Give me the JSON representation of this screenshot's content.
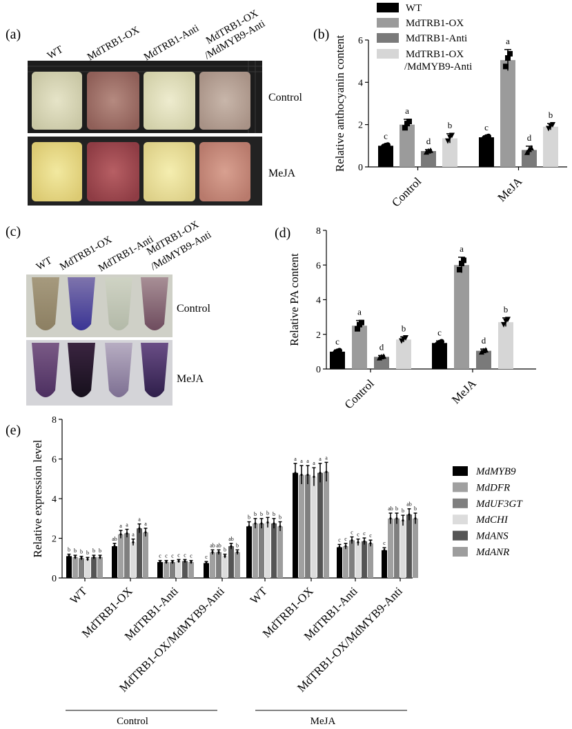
{
  "panels": {
    "a": {
      "tag": "(a)",
      "columns": [
        "WT",
        "MdTRB1-OX",
        "MdTRB1-Anti",
        "MdTRB1-OX",
        "/MdMYB9-Anti"
      ],
      "rows": [
        "Control",
        "MeJA"
      ]
    },
    "c": {
      "tag": "(c)",
      "columns": [
        "WT",
        "MdTRB1-OX",
        "MdTRB1-Anti",
        "MdTRB1-OX",
        "/MdMYB9-Anti"
      ],
      "rows": [
        "Control",
        "MeJA"
      ]
    },
    "b": {
      "tag": "(b)"
    },
    "d": {
      "tag": "(d)"
    },
    "e": {
      "tag": "(e)",
      "group_labels": [
        "Control",
        "MeJA"
      ]
    }
  },
  "colors": {
    "WT": "#000000",
    "MdTRB1-OX": "#9b9b9b",
    "MdTRB1-Anti": "#7a7a7a",
    "MdTRB1-OX/MdMYB9-Anti": "#d6d6d6",
    "MdMYB9": "#000000",
    "MdDFR": "#a0a0a0",
    "MdUF3GT": "#7f7f7f",
    "MdCHI": "#dcdcdc",
    "MdANS": "#555555",
    "MdANR": "#9d9d9d"
  },
  "chart_data": [
    {
      "panel": "b",
      "type": "bar",
      "categories": [
        "Control",
        "MeJA"
      ],
      "ylabel": "Relative anthocyanin content",
      "ylim": [
        0,
        6
      ],
      "yticks": [
        0,
        2,
        4,
        6
      ],
      "legend": "top-left",
      "series": [
        {
          "name": "WT",
          "values": [
            1.0,
            1.4
          ],
          "errors": [
            0.06,
            0.07
          ],
          "letters": [
            "c",
            "c"
          ]
        },
        {
          "name": "MdTRB1-OX",
          "values": [
            2.0,
            5.05
          ],
          "errors": [
            0.25,
            0.5
          ],
          "letters": [
            "a",
            "a"
          ]
        },
        {
          "name": "MdTRB1-Anti",
          "values": [
            0.75,
            0.8
          ],
          "errors": [
            0.07,
            0.18
          ],
          "letters": [
            "d",
            "d"
          ]
        },
        {
          "name": "MdTRB1-OX/MdMYB9-Anti",
          "values": [
            1.35,
            1.9
          ],
          "errors": [
            0.22,
            0.15
          ],
          "letters": [
            "b",
            "b"
          ]
        }
      ]
    },
    {
      "panel": "d",
      "type": "bar",
      "categories": [
        "Control",
        "MeJA"
      ],
      "ylabel": "Relative PA content",
      "ylim": [
        0,
        8
      ],
      "yticks": [
        0,
        2,
        4,
        6,
        8
      ],
      "series": [
        {
          "name": "WT",
          "values": [
            1.0,
            1.5
          ],
          "errors": [
            0.1,
            0.12
          ],
          "letters": [
            "c",
            "c"
          ]
        },
        {
          "name": "MdTRB1-OX",
          "values": [
            2.5,
            6.0
          ],
          "errors": [
            0.3,
            0.45
          ],
          "letters": [
            "a",
            "a"
          ]
        },
        {
          "name": "MdTRB1-Anti",
          "values": [
            0.7,
            1.05
          ],
          "errors": [
            0.08,
            0.1
          ],
          "letters": [
            "d",
            "d"
          ]
        },
        {
          "name": "MdTRB1-OX/MdMYB9-Anti",
          "values": [
            1.7,
            2.7
          ],
          "errors": [
            0.15,
            0.25
          ],
          "letters": [
            "b",
            "b"
          ]
        }
      ]
    },
    {
      "panel": "e",
      "type": "bar",
      "categories": [
        "WT",
        "MdTRB1-OX",
        "MdTRB1-Anti",
        "MdTRB1-OX/MdMYB9-Anti",
        "WT",
        "MdTRB1-OX",
        "MdTRB1-Anti",
        "MdTRB1-OX/MdMYB9-Anti"
      ],
      "ylabel": "Relative expression level",
      "ylim": [
        0,
        8
      ],
      "yticks": [
        0,
        2,
        4,
        6,
        8
      ],
      "legend": "right",
      "series": [
        {
          "name": "MdMYB9",
          "values": [
            1.1,
            1.6,
            0.8,
            0.75,
            2.6,
            5.3,
            1.55,
            1.4
          ],
          "letters": [
            "b",
            "ab",
            "c",
            "c",
            "b",
            "a",
            "c",
            "c"
          ]
        },
        {
          "name": "MdDFR",
          "values": [
            1.05,
            2.2,
            0.8,
            1.3,
            2.75,
            5.2,
            1.6,
            3.0
          ],
          "letters": [
            "b",
            "a",
            "c",
            "ab",
            "b",
            "a",
            "c",
            "ab"
          ]
        },
        {
          "name": "MdUF3GT",
          "values": [
            1.0,
            2.25,
            0.8,
            1.3,
            2.75,
            5.2,
            1.9,
            3.0
          ],
          "letters": [
            "b",
            "a",
            "c",
            "ab",
            "b",
            "a",
            "c",
            "b"
          ]
        },
        {
          "name": "MdCHI",
          "values": [
            0.95,
            1.8,
            0.85,
            1.1,
            2.8,
            5.1,
            1.8,
            2.9
          ],
          "letters": [
            "b",
            "a",
            "c",
            "b",
            "b",
            "a",
            "c",
            "b"
          ]
        },
        {
          "name": "MdANS",
          "values": [
            1.05,
            2.5,
            0.85,
            1.6,
            2.75,
            5.3,
            1.85,
            3.2
          ],
          "letters": [
            "b",
            "a",
            "c",
            "ab",
            "b",
            "a",
            "c",
            "ab"
          ]
        },
        {
          "name": "MdANR",
          "values": [
            1.05,
            2.3,
            0.8,
            1.3,
            2.6,
            5.35,
            1.75,
            3.0
          ],
          "letters": [
            "b",
            "a",
            "c",
            "b",
            "b",
            "a",
            "c",
            "b"
          ]
        }
      ]
    }
  ]
}
